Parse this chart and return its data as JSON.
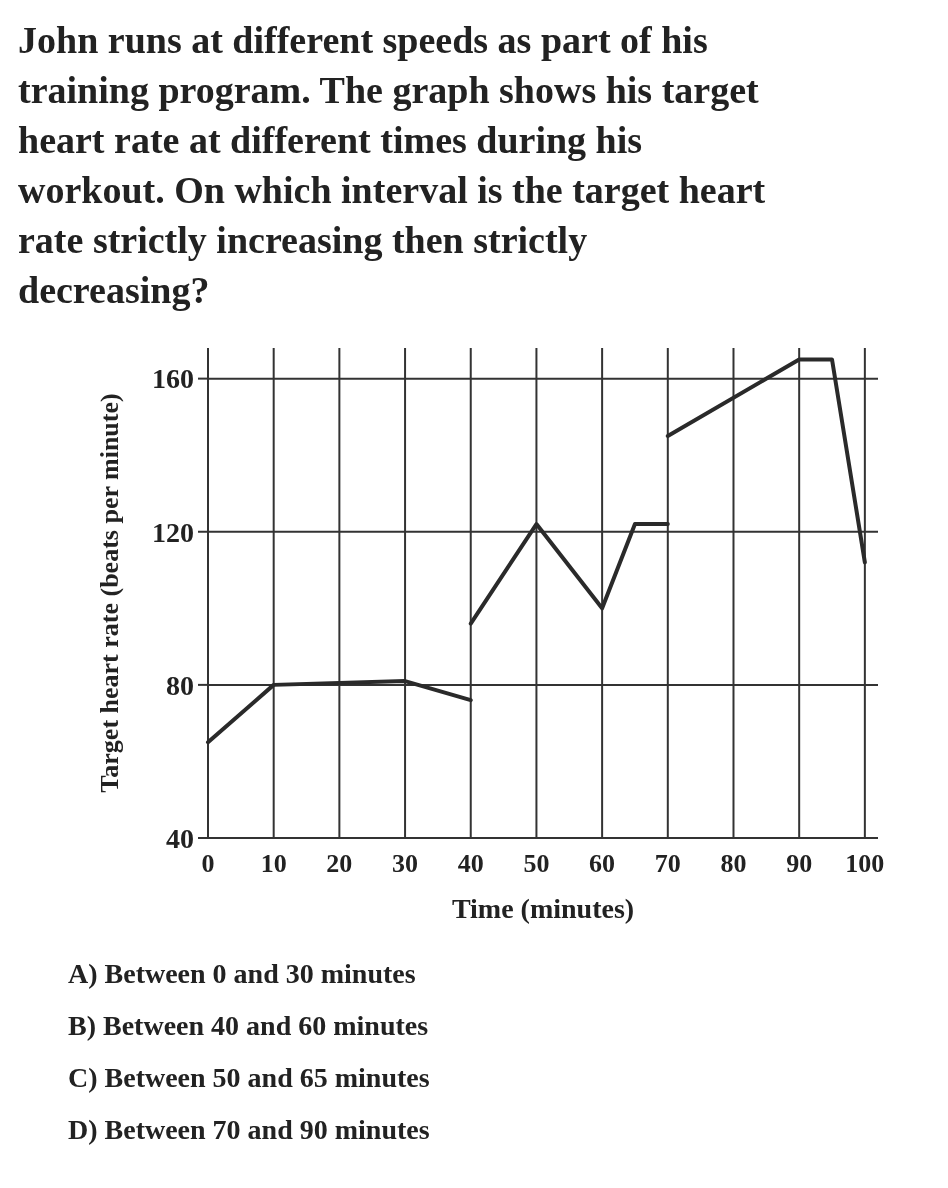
{
  "chart_data": {
    "type": "line",
    "title": "John runs at different speeds as part of his training program. The graph shows his target heart rate at different times during his workout. On which interval is the target heart rate strictly increasing then strictly decreasing?",
    "xlabel": "Time (minutes)",
    "ylabel": "Target heart rate (beats per minute)",
    "series": [
      {
        "color": "#2a2a2a",
        "x": [
          0,
          10,
          30,
          40
        ],
        "values": [
          65,
          80,
          81,
          76
        ]
      },
      {
        "color": "#2a2a2a",
        "x": [
          40,
          50,
          60,
          65,
          70
        ],
        "values": [
          96,
          122,
          100,
          122,
          122
        ]
      },
      {
        "color": "#2a2a2a",
        "x": [
          70,
          90,
          95,
          100
        ],
        "values": [
          145,
          165,
          165,
          112
        ]
      }
    ],
    "xlim": [
      0,
      102
    ],
    "xticks": [
      0,
      10,
      20,
      30,
      40,
      50,
      60,
      70,
      80,
      90,
      100
    ],
    "ylim": [
      40,
      168
    ],
    "yticks": [
      40,
      80,
      120,
      160
    ],
    "grid": true,
    "marker": "none",
    "line_style": "solid",
    "annotations": [
      "A)  Between 0 and 30 minutes",
      "B)  Between 40 and 60 minutes",
      "C)  Between 50 and 65 minutes",
      "D)  Between 70 and 90 minutes"
    ]
  }
}
